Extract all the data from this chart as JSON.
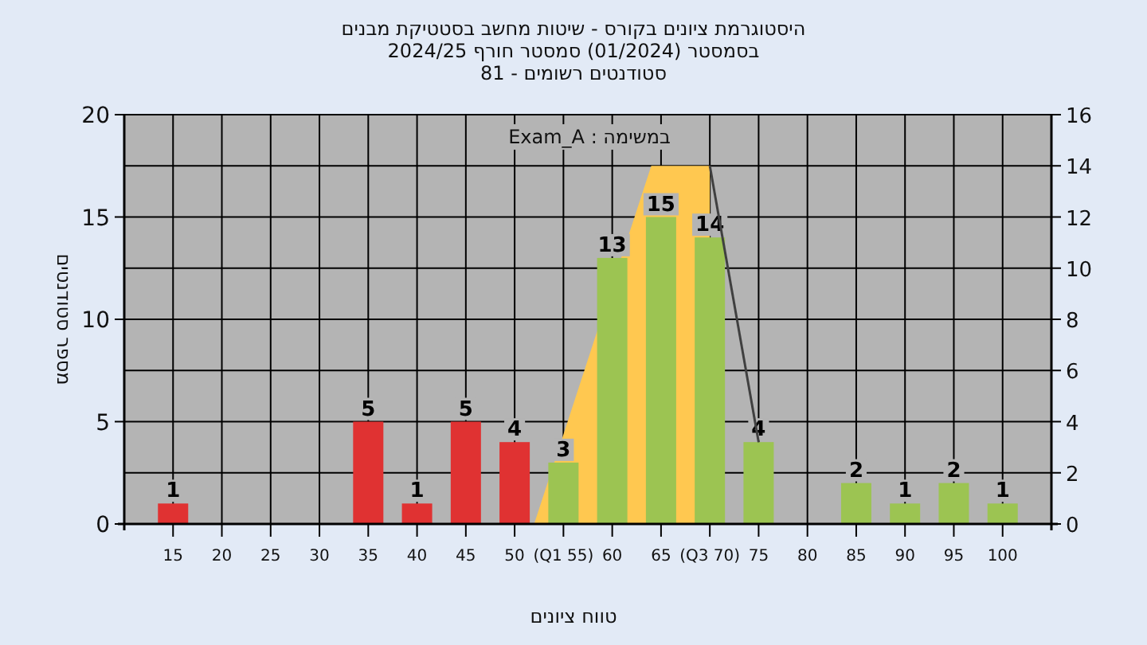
{
  "chart_data": {
    "type": "bar",
    "title": "היסטוגרמת ציונים בקורס - שיטות מחשב בסטטיקת מבנים",
    "subtitle": "בסמסטר  (01/2024)  סמסטר חורף 2024/25",
    "annotations": [
      "סטודנטים רשומים - 81",
      "במשימה : Exam_A"
    ],
    "xlabel": "טווח ציונים",
    "ylabel": "מספר סטודנטים",
    "xlim": [
      10,
      105
    ],
    "xticks": [
      15,
      20,
      25,
      30,
      35,
      40,
      45,
      50,
      {
        "value": 55,
        "label": "(Q1 55)"
      },
      60,
      65,
      {
        "value": 70,
        "label": "(Q3 70)"
      },
      75,
      80,
      85,
      90,
      95,
      100
    ],
    "ylim": [
      0,
      20
    ],
    "yticks": [
      0,
      5,
      10,
      15,
      20
    ],
    "y2lim": [
      0,
      16
    ],
    "y2ticks": [
      0,
      2,
      4,
      6,
      8,
      10,
      12,
      14,
      16
    ],
    "grid": true,
    "series": [
      {
        "type": "area",
        "axis": "y2",
        "color": "#ffc850",
        "x": [
          52,
          64,
          70,
          70
        ],
        "values": [
          0,
          14,
          14,
          0
        ]
      },
      {
        "x": [
          15,
          35,
          40,
          45,
          50,
          55,
          60,
          65,
          70,
          75,
          85,
          90,
          95,
          100
        ],
        "values": [
          1,
          5,
          1,
          5,
          4,
          3,
          13,
          15,
          14,
          4,
          2,
          1,
          2,
          1
        ],
        "colors": [
          "#e03232",
          "#e03232",
          "#e03232",
          "#e03232",
          "#e03232",
          "#9cc452",
          "#9cc452",
          "#9cc452",
          "#9cc452",
          "#9cc452",
          "#9cc452",
          "#9cc452",
          "#9cc452",
          "#9cc452"
        ],
        "value_labels": [
          "1",
          "5",
          "1",
          "5",
          "4",
          "3",
          "13",
          "15",
          "14",
          "4",
          "2",
          "1",
          "2",
          "1"
        ]
      },
      {
        "type": "line",
        "axis": "y2",
        "color": "#404040",
        "x": [
          70,
          75
        ],
        "values": [
          14,
          3.2
        ]
      }
    ]
  }
}
